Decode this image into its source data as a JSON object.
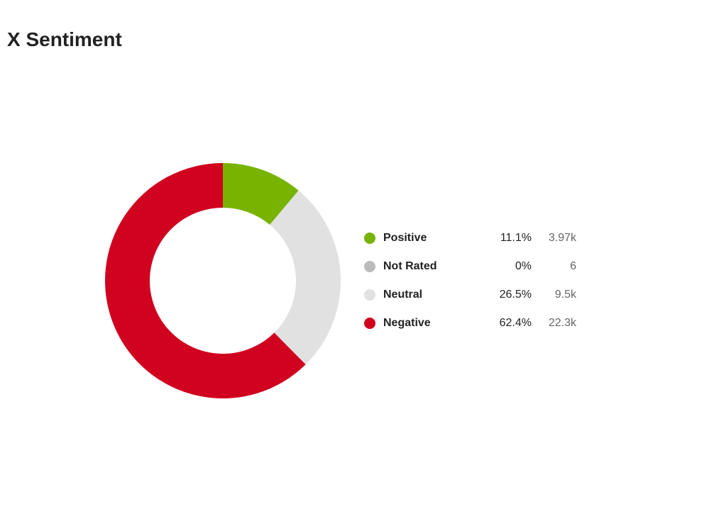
{
  "page": {
    "title": "X Sentiment"
  },
  "chart_data": {
    "type": "pie",
    "title": "X Sentiment",
    "donut": true,
    "legend_position": "right",
    "categories": [
      "Positive",
      "Not Rated",
      "Neutral",
      "Negative"
    ],
    "values": [
      11.1,
      0,
      26.5,
      62.4
    ],
    "percent_labels": [
      "11.1%",
      "0%",
      "26.5%",
      "62.4%"
    ],
    "count_labels": [
      "3.97k",
      "6",
      "9.5k",
      "22.3k"
    ],
    "colors": [
      "#77b300",
      "#bbbbbb",
      "#e1e1e1",
      "#d0021f"
    ]
  }
}
